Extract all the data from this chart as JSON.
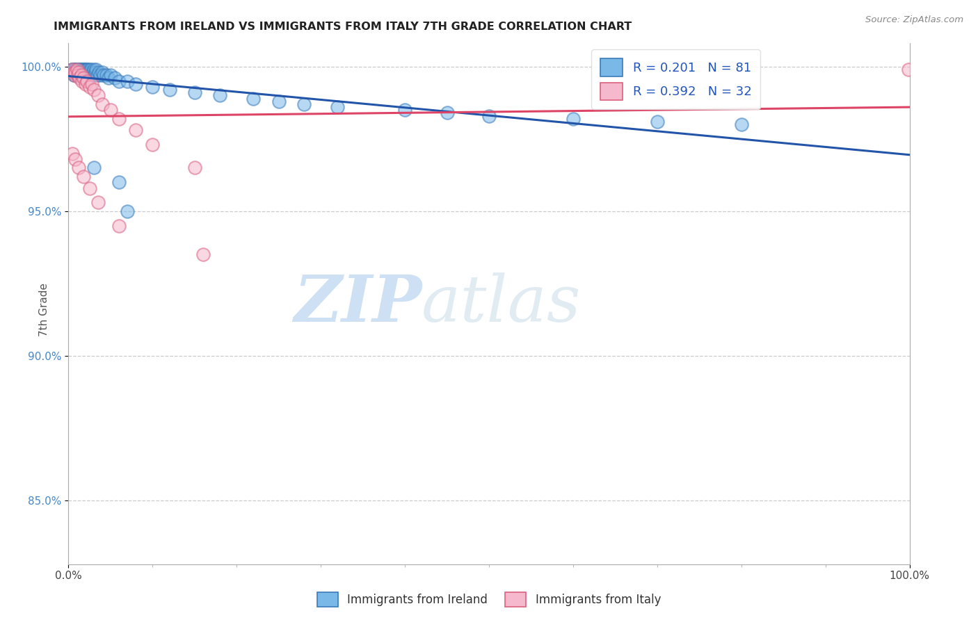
{
  "title": "IMMIGRANTS FROM IRELAND VS IMMIGRANTS FROM ITALY 7TH GRADE CORRELATION CHART",
  "source": "Source: ZipAtlas.com",
  "ylabel": "7th Grade",
  "R_ireland": 0.201,
  "N_ireland": 81,
  "R_italy": 0.392,
  "N_italy": 32,
  "color_ireland_fill": "#7ab8e8",
  "color_ireland_edge": "#3a7abb",
  "color_italy_fill": "#f5b8cc",
  "color_italy_edge": "#d96080",
  "color_ireland_line": "#2255aa",
  "color_italy_line": "#dd4466",
  "xlim": [
    0.0,
    1.0
  ],
  "ylim": [
    0.828,
    1.008
  ],
  "yticks": [
    0.85,
    0.9,
    0.95,
    1.0
  ],
  "ytick_labels": [
    "85.0%",
    "90.0%",
    "95.0%",
    "100.0%"
  ],
  "watermark_zip": "ZIP",
  "watermark_atlas": "atlas",
  "legend_labels": [
    "Immigrants from Ireland",
    "Immigrants from Italy"
  ],
  "ireland_x": [
    0.004,
    0.004,
    0.005,
    0.005,
    0.006,
    0.006,
    0.007,
    0.007,
    0.008,
    0.008,
    0.009,
    0.009,
    0.01,
    0.01,
    0.01,
    0.011,
    0.011,
    0.012,
    0.012,
    0.013,
    0.013,
    0.014,
    0.014,
    0.015,
    0.015,
    0.015,
    0.016,
    0.016,
    0.017,
    0.017,
    0.018,
    0.018,
    0.019,
    0.019,
    0.02,
    0.02,
    0.021,
    0.021,
    0.022,
    0.022,
    0.023,
    0.024,
    0.025,
    0.025,
    0.026,
    0.027,
    0.028,
    0.029,
    0.03,
    0.031,
    0.032,
    0.033,
    0.034,
    0.036,
    0.038,
    0.04,
    0.042,
    0.045,
    0.048,
    0.05,
    0.055,
    0.06,
    0.07,
    0.08,
    0.1,
    0.12,
    0.15,
    0.18,
    0.22,
    0.25,
    0.28,
    0.32,
    0.4,
    0.45,
    0.5,
    0.6,
    0.7,
    0.8,
    0.06,
    0.07,
    0.03
  ],
  "ireland_y": [
    0.999,
    0.998,
    0.999,
    0.998,
    0.999,
    0.997,
    0.999,
    0.998,
    0.999,
    0.997,
    0.999,
    0.998,
    0.999,
    0.998,
    0.997,
    0.999,
    0.998,
    0.999,
    0.997,
    0.999,
    0.998,
    0.999,
    0.997,
    0.999,
    0.998,
    0.997,
    0.999,
    0.998,
    0.999,
    0.997,
    0.999,
    0.998,
    0.999,
    0.997,
    0.999,
    0.998,
    0.999,
    0.997,
    0.999,
    0.998,
    0.999,
    0.998,
    0.999,
    0.997,
    0.998,
    0.999,
    0.997,
    0.998,
    0.999,
    0.997,
    0.998,
    0.999,
    0.997,
    0.998,
    0.997,
    0.998,
    0.997,
    0.997,
    0.996,
    0.997,
    0.996,
    0.995,
    0.995,
    0.994,
    0.993,
    0.992,
    0.991,
    0.99,
    0.989,
    0.988,
    0.987,
    0.986,
    0.985,
    0.984,
    0.983,
    0.982,
    0.981,
    0.98,
    0.96,
    0.95,
    0.965
  ],
  "italy_x": [
    0.005,
    0.006,
    0.007,
    0.008,
    0.01,
    0.011,
    0.012,
    0.013,
    0.015,
    0.016,
    0.018,
    0.02,
    0.022,
    0.025,
    0.028,
    0.03,
    0.035,
    0.04,
    0.05,
    0.06,
    0.08,
    0.1,
    0.15,
    0.005,
    0.008,
    0.012,
    0.018,
    0.025,
    0.035,
    0.06,
    0.999,
    0.16
  ],
  "italy_y": [
    0.999,
    0.998,
    0.997,
    0.998,
    0.999,
    0.997,
    0.998,
    0.996,
    0.997,
    0.995,
    0.996,
    0.994,
    0.995,
    0.993,
    0.994,
    0.992,
    0.99,
    0.987,
    0.985,
    0.982,
    0.978,
    0.973,
    0.965,
    0.97,
    0.968,
    0.965,
    0.962,
    0.958,
    0.953,
    0.945,
    0.999,
    0.935
  ]
}
